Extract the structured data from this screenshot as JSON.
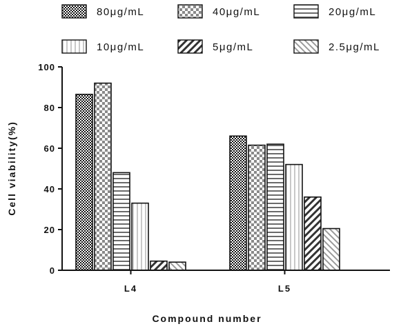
{
  "chart_data": {
    "type": "bar",
    "categories": [
      "L4",
      "L5"
    ],
    "series": [
      {
        "name": "80μg/mL",
        "values": [
          86.5,
          66
        ],
        "color": "#111111",
        "pattern": "checker-dark"
      },
      {
        "name": "40μg/mL",
        "values": [
          92,
          61.5
        ],
        "color": "#8a8a8a",
        "pattern": "checker-light"
      },
      {
        "name": "20μg/mL",
        "values": [
          48,
          62
        ],
        "color": "#6a6a6a",
        "pattern": "horizontal-lines"
      },
      {
        "name": "10μg/mL",
        "values": [
          33,
          52
        ],
        "color": "#c8c8c8",
        "pattern": "vertical-lines"
      },
      {
        "name": "5μg/mL",
        "values": [
          4.5,
          36
        ],
        "color": "#333333",
        "pattern": "diagonal-up"
      },
      {
        "name": "2.5μg/mL",
        "values": [
          4,
          20.5
        ],
        "color": "#9a9a9a",
        "pattern": "diagonal-down"
      }
    ],
    "xlabel": "Compound number",
    "ylabel": "Cell viability(%)",
    "ylim": [
      0,
      100
    ],
    "yticks": [
      0,
      20,
      40,
      60,
      80,
      100
    ],
    "grid": false,
    "legend_position": "top"
  }
}
